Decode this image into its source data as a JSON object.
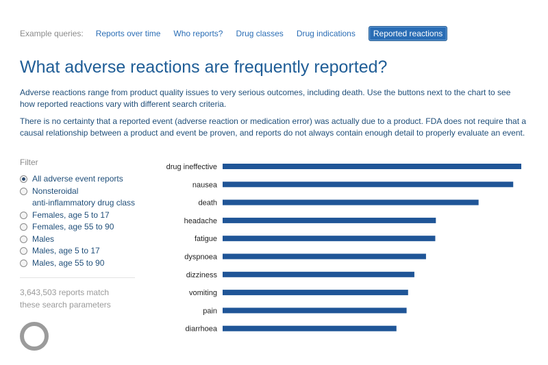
{
  "queries": {
    "label": "Example queries:",
    "items": [
      {
        "label": "Reports over time",
        "active": false
      },
      {
        "label": "Who reports?",
        "active": false
      },
      {
        "label": "Drug classes",
        "active": false
      },
      {
        "label": "Drug indications",
        "active": false
      },
      {
        "label": "Reported reactions",
        "active": true
      }
    ]
  },
  "heading": "What adverse reactions are frequently reported?",
  "paragraph1": "Adverse reactions range from product quality issues to very serious outcomes, including death. Use the buttons next to the chart to see how reported reactions vary with different search criteria.",
  "paragraph2": "There is no certainty that a reported event (adverse reaction or medication error) was actually due to a product. FDA does not require that a causal relationship between a product and event be proven, and reports do not always contain enough detail to properly evaluate an event.",
  "filter": {
    "title": "Filter",
    "options": [
      {
        "label": "All adverse event reports",
        "checked": true
      },
      {
        "label": "Nonsteroidal",
        "label2": "anti-inflammatory drug class",
        "checked": false
      },
      {
        "label": "Females, age 5 to 17",
        "checked": false
      },
      {
        "label": "Females, age 55 to 90",
        "checked": false
      },
      {
        "label": "Males",
        "checked": false
      },
      {
        "label": "Males, age 5 to 17",
        "checked": false
      },
      {
        "label": "Males, age 55 to 90",
        "checked": false
      }
    ],
    "count_text": "3,643,503 reports match these search parameters"
  },
  "colors": {
    "bar": "#1f5597",
    "link": "#2a6db5",
    "heading": "#1f5d96"
  },
  "chart_data": {
    "type": "bar",
    "orientation": "horizontal",
    "categories": [
      "drug ineffective",
      "nausea",
      "death",
      "headache",
      "fatigue",
      "dyspnoea",
      "dizziness",
      "vomiting",
      "pain",
      "diarrhoea"
    ],
    "values": [
      100,
      97.3,
      85.7,
      71.4,
      71.2,
      68.1,
      64.2,
      62.1,
      61.6,
      58.2
    ],
    "value_scale": "relative (percent of largest bar); no axis printed"
  }
}
